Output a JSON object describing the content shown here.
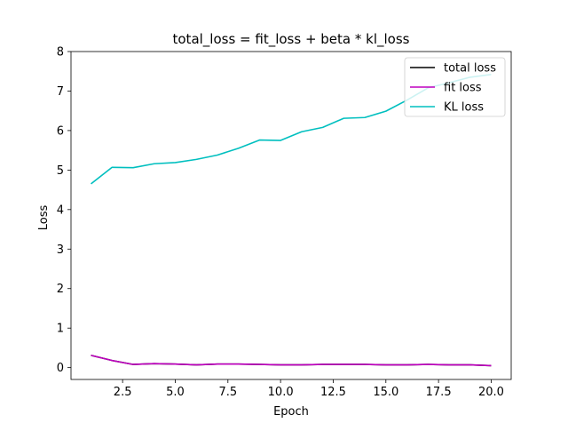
{
  "chart_data": {
    "type": "line",
    "title": "total_loss = fit_loss + beta * kl_loss",
    "xlabel": "Epoch",
    "ylabel": "Loss",
    "xlim": [
      0.05,
      20.95
    ],
    "ylim": [
      -0.3,
      8
    ],
    "x_ticks": [
      2.5,
      5.0,
      7.5,
      10.0,
      12.5,
      15.0,
      17.5,
      20.0
    ],
    "x_tick_labels": [
      "2.5",
      "5.0",
      "7.5",
      "10.0",
      "12.5",
      "15.0",
      "17.5",
      "20.0"
    ],
    "y_ticks": [
      0,
      1,
      2,
      3,
      4,
      5,
      6,
      7,
      8
    ],
    "y_tick_labels": [
      "0",
      "1",
      "2",
      "3",
      "4",
      "5",
      "6",
      "7",
      "8"
    ],
    "grid": false,
    "legend_position": "top-right",
    "series": [
      {
        "name": "total loss",
        "color": "#000000",
        "x": [
          1,
          2,
          3,
          4,
          5,
          6,
          7,
          8,
          9,
          10,
          11,
          12,
          13,
          14,
          15,
          16,
          17,
          18,
          19,
          20
        ],
        "values": [
          0.31,
          0.18,
          0.08,
          0.1,
          0.09,
          0.07,
          0.09,
          0.09,
          0.08,
          0.07,
          0.07,
          0.08,
          0.08,
          0.08,
          0.07,
          0.07,
          0.08,
          0.07,
          0.07,
          0.05
        ]
      },
      {
        "name": "fit loss",
        "color": "#bf00bf",
        "x": [
          1,
          2,
          3,
          4,
          5,
          6,
          7,
          8,
          9,
          10,
          11,
          12,
          13,
          14,
          15,
          16,
          17,
          18,
          19,
          20
        ],
        "values": [
          0.31,
          0.18,
          0.08,
          0.1,
          0.09,
          0.07,
          0.09,
          0.09,
          0.08,
          0.07,
          0.07,
          0.08,
          0.08,
          0.08,
          0.07,
          0.07,
          0.08,
          0.07,
          0.07,
          0.05
        ]
      },
      {
        "name": "KL loss",
        "color": "#00bfbf",
        "x": [
          1,
          2,
          3,
          4,
          5,
          6,
          7,
          8,
          9,
          10,
          11,
          12,
          13,
          14,
          15,
          16,
          17,
          18,
          19,
          20
        ],
        "values": [
          4.65,
          5.07,
          5.06,
          5.16,
          5.19,
          5.27,
          5.38,
          5.55,
          5.76,
          5.75,
          5.97,
          6.08,
          6.31,
          6.33,
          6.49,
          6.77,
          7.08,
          7.21,
          7.35,
          7.42
        ]
      }
    ]
  }
}
